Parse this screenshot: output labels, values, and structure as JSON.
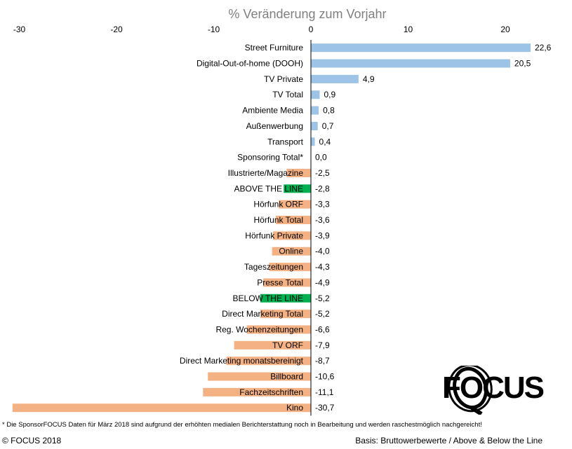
{
  "chart_data": {
    "type": "bar",
    "orientation": "horizontal",
    "title": "% Veränderung zum Vorjahr",
    "xlim": [
      -31,
      25
    ],
    "ticks": [
      -30,
      -20,
      -10,
      0,
      10,
      20
    ],
    "tick_labels": [
      "-30",
      "-20",
      "-10",
      "0",
      "10",
      "20"
    ],
    "categories": [
      "Street Furniture",
      "Digital-Out-of-home (DOOH)",
      "TV Private",
      "TV Total",
      "Ambiente Media",
      "Außenwerbung",
      "Transport",
      "Sponsoring Total*",
      "Illustrierte/Magazine",
      "ABOVE THE LINE",
      "Hörfunk ORF",
      "Hörfunk Total",
      "Hörfunk Private",
      "Online",
      "Tageszeitungen",
      "Presse Total",
      "BELOW THE LINE",
      "Direct Marketing Total",
      "Reg. Wochenzeitungen",
      "TV ORF",
      "Direct Marketing monatsbereinigt",
      "Billboard",
      "Fachzeitschriften",
      "Kino"
    ],
    "values": [
      22.6,
      20.5,
      4.9,
      0.9,
      0.8,
      0.7,
      0.4,
      0.0,
      -2.5,
      -2.8,
      -3.3,
      -3.6,
      -3.9,
      -4.0,
      -4.3,
      -4.9,
      -5.2,
      -5.2,
      -6.6,
      -7.9,
      -8.7,
      -10.6,
      -11.1,
      -30.7
    ],
    "value_labels": [
      "22,6",
      "20,5",
      "4,9",
      "0,9",
      "0,8",
      "0,7",
      "0,4",
      "0,0",
      "-2,5",
      "-2,8",
      "-3,3",
      "-3,6",
      "-3,9",
      "-4,0",
      "-4,3",
      "-4,9",
      "-5,2",
      "-5,2",
      "-6,6",
      "-7,9",
      "-8,7",
      "-10,6",
      "-11,1",
      "-30,7"
    ],
    "colors": {
      "positive": "#9dc3e6",
      "negative": "#f4b183",
      "highlight": "#00b050"
    },
    "highlight_categories": [
      "ABOVE THE LINE",
      "BELOW THE LINE"
    ],
    "grid": false,
    "legend": "none"
  },
  "footnote": "* Die SponsorFOCUS Daten  für März 2018 sind aufgrund der erhöhten medialen  Berichterstattung noch in Bearbeitung und werden raschestmöglich nachgereicht!",
  "copyright": "© FOCUS 2018",
  "basis": "Basis: Bruttowerbewerte / Above & Below the Line",
  "logo": {
    "text": "FOCUS",
    "color": "#000000"
  }
}
